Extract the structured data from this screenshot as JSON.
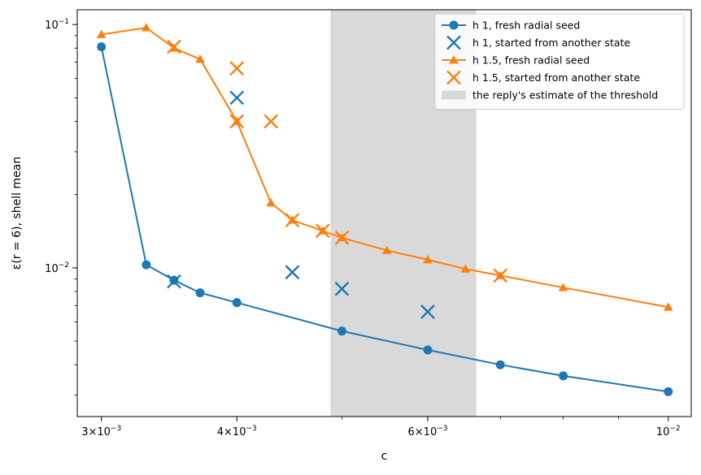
{
  "chart_data": {
    "type": "line",
    "title": "",
    "xlabel": "c",
    "ylabel": "ε(r = 6), shell mean",
    "xscale": "log",
    "yscale": "log",
    "xlim": [
      0.00285,
      0.0105
    ],
    "ylim": [
      0.00245,
      0.115
    ],
    "xticks": [
      {
        "value": 0.003,
        "mantissa": "3",
        "base": "10",
        "exp": "−3"
      },
      {
        "value": 0.004,
        "mantissa": "4",
        "base": "10",
        "exp": "−3"
      },
      {
        "value": 0.006,
        "mantissa": "6",
        "base": "10",
        "exp": "−3"
      },
      {
        "value": 0.01,
        "mantissa": "",
        "base": "10",
        "exp": "−2"
      }
    ],
    "xminor": [
      0.005,
      0.007,
      0.008,
      0.009
    ],
    "yticks": [
      {
        "value": 0.01,
        "base": "10",
        "exp": "−2"
      },
      {
        "value": 0.1,
        "base": "10",
        "exp": "−1"
      }
    ],
    "yminor": [
      0.003,
      0.004,
      0.005,
      0.006,
      0.007,
      0.008,
      0.009,
      0.02,
      0.03,
      0.04,
      0.05,
      0.06,
      0.07,
      0.08,
      0.09
    ],
    "legend_position": "upper right",
    "span": {
      "label": "the reply's estimate of the threshold",
      "x0": 0.00488,
      "x1": 0.00665,
      "color": "#d9d9d9"
    },
    "series": [
      {
        "name": "h 1, fresh radial seed",
        "style": "line-circle",
        "color": "#1f77b4",
        "x": [
          0.003,
          0.0033,
          0.0035,
          0.0037,
          0.004,
          0.005,
          0.006,
          0.007,
          0.008,
          0.01
        ],
        "y": [
          0.081,
          0.0103,
          0.0089,
          0.0079,
          0.0072,
          0.0055,
          0.0046,
          0.004,
          0.0036,
          0.0031
        ]
      },
      {
        "name": "h 1, started from another state",
        "style": "x",
        "color": "#1f77b4",
        "x": [
          0.0035,
          0.004,
          0.0045,
          0.005,
          0.006
        ],
        "y": [
          0.0088,
          0.05,
          0.0096,
          0.0082,
          0.0066
        ]
      },
      {
        "name": "h 1.5, fresh radial seed",
        "style": "line-triangle",
        "color": "#ff7f0e",
        "x": [
          0.003,
          0.0033,
          0.0035,
          0.0037,
          0.004,
          0.0043,
          0.0045,
          0.0048,
          0.005,
          0.0055,
          0.006,
          0.0065,
          0.007,
          0.008,
          0.01
        ],
        "y": [
          0.091,
          0.097,
          0.08,
          0.072,
          0.04,
          0.0185,
          0.0157,
          0.0142,
          0.0133,
          0.0118,
          0.0108,
          0.0099,
          0.0093,
          0.0083,
          0.0069
        ]
      },
      {
        "name": "h 1.5, started from another state",
        "style": "x",
        "color": "#ff7f0e",
        "x": [
          0.0035,
          0.004,
          0.004,
          0.0043,
          0.0045,
          0.0048,
          0.005,
          0.007
        ],
        "y": [
          0.081,
          0.066,
          0.04,
          0.04,
          0.0157,
          0.0142,
          0.0133,
          0.0093
        ]
      }
    ]
  }
}
